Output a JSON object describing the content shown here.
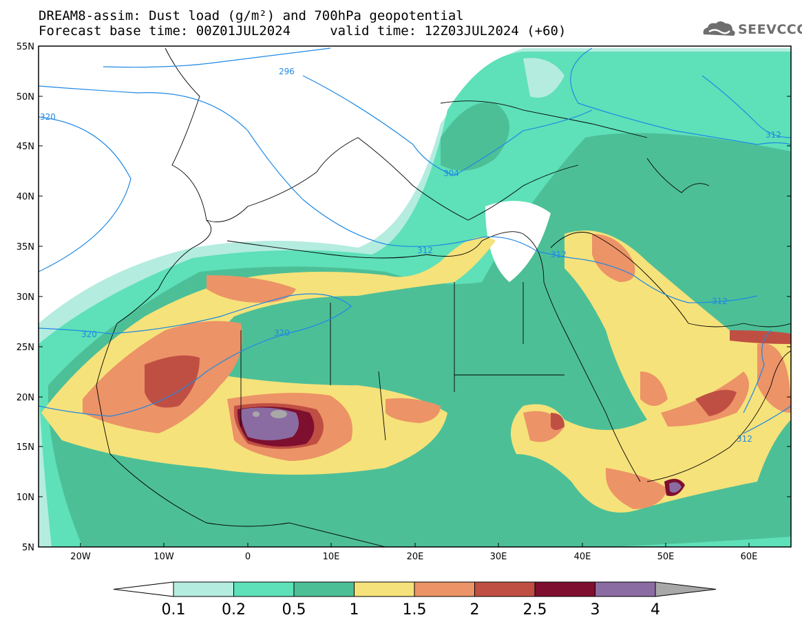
{
  "header": {
    "title_line1": "DREAM8-assim: Dust load (g/m²) and 700hPa geopotential",
    "title_line2": "Forecast base time: 00Z01JUL2024     valid time: 12Z03JUL2024 (+60)",
    "logo_text": "SEEVCCC"
  },
  "axes": {
    "lat_labels": [
      "55N",
      "50N",
      "45N",
      "40N",
      "35N",
      "30N",
      "25N",
      "20N",
      "15N",
      "10N",
      "5N"
    ],
    "lon_labels": [
      "20W",
      "10W",
      "0",
      "10E",
      "20E",
      "30E",
      "40E",
      "50E",
      "60E"
    ]
  },
  "contours": {
    "labels": [
      "296",
      "320",
      "304",
      "312",
      "312",
      "320",
      "320",
      "312",
      "312",
      "312"
    ],
    "color": "#1e88e5"
  },
  "colorbar": {
    "ticks": [
      "0.1",
      "0.2",
      "0.5",
      "1",
      "1.5",
      "2",
      "2.5",
      "3",
      "4"
    ],
    "colors": [
      "#ffffff",
      "#b4ecdf",
      "#5ee0b8",
      "#4dbf97",
      "#f6e27a",
      "#ec9367",
      "#c04f43",
      "#7e0f2f",
      "#8a6ca2",
      "#a8a8a8"
    ]
  }
}
